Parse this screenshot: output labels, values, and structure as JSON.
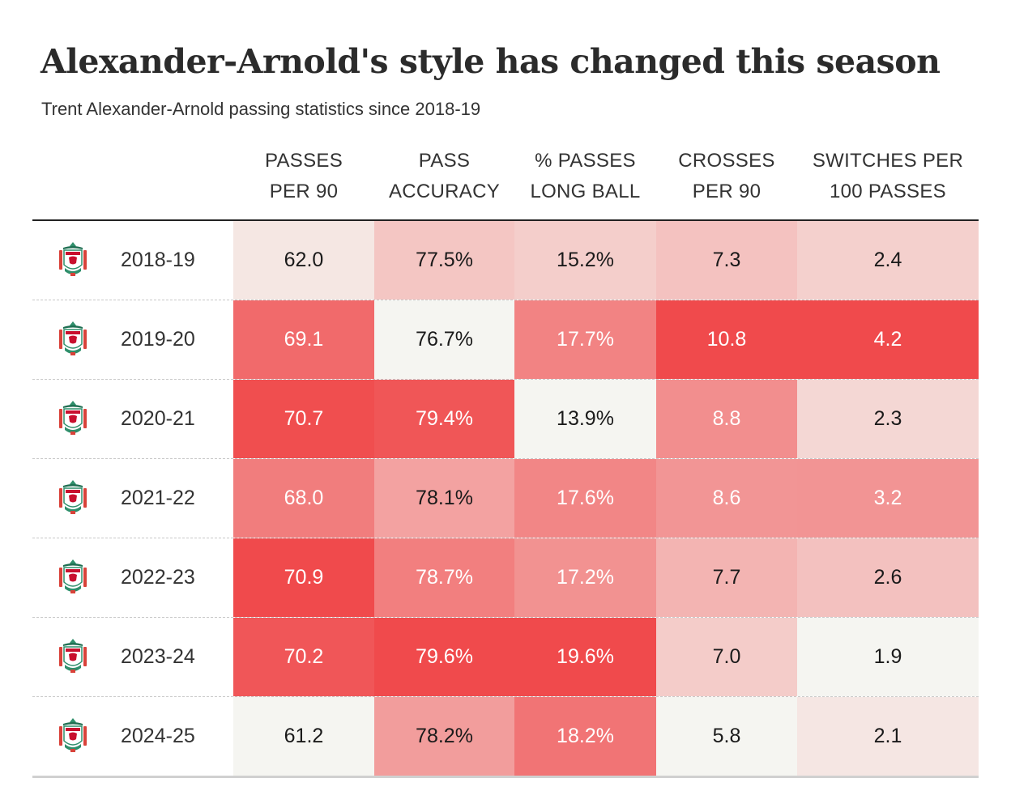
{
  "title": "Alexander-Arnold's style has changed this season",
  "subtitle": "Trent Alexander-Arnold passing statistics since 2018-19",
  "columns": [
    {
      "line1": "PASSES",
      "line2": "PER 90"
    },
    {
      "line1": "PASS",
      "line2": "ACCURACY"
    },
    {
      "line1": "% PASSES",
      "line2": "LONG BALL"
    },
    {
      "line1": "CROSSES",
      "line2": "PER 90"
    },
    {
      "line1": "SWITCHES PER",
      "line2": "100 PASSES"
    }
  ],
  "colors": {
    "low": "#f5f5f1",
    "high": "#f04a4c",
    "text_dark": "#1a1a1a",
    "text_light": "#ffffff"
  },
  "crest_icon": "liverpool-crest-icon",
  "chart_data": {
    "type": "table",
    "title": "Alexander-Arnold's style has changed this season",
    "subtitle": "Trent Alexander-Arnold passing statistics since 2018-19",
    "columns": [
      "PASSES PER 90",
      "PASS ACCURACY",
      "% PASSES LONG BALL",
      "CROSSES PER 90",
      "SWITCHES PER 100 PASSES"
    ],
    "rows": [
      {
        "season": "2018-19",
        "display": [
          "62.0",
          "77.5%",
          "15.2%",
          "7.3",
          "2.4"
        ],
        "values": [
          62.0,
          77.5,
          15.2,
          7.3,
          2.4
        ]
      },
      {
        "season": "2019-20",
        "display": [
          "69.1",
          "76.7%",
          "17.7%",
          "10.8",
          "4.2"
        ],
        "values": [
          69.1,
          76.7,
          17.7,
          10.8,
          4.2
        ]
      },
      {
        "season": "2020-21",
        "display": [
          "70.7",
          "79.4%",
          "13.9%",
          "8.8",
          "2.3"
        ],
        "values": [
          70.7,
          79.4,
          13.9,
          8.8,
          2.3
        ]
      },
      {
        "season": "2021-22",
        "display": [
          "68.0",
          "78.1%",
          "17.6%",
          "8.6",
          "3.2"
        ],
        "values": [
          68.0,
          78.1,
          17.6,
          8.6,
          3.2
        ]
      },
      {
        "season": "2022-23",
        "display": [
          "70.9",
          "78.7%",
          "17.2%",
          "7.7",
          "2.6"
        ],
        "values": [
          70.9,
          78.7,
          17.2,
          7.7,
          2.6
        ]
      },
      {
        "season": "2023-24",
        "display": [
          "70.2",
          "79.6%",
          "19.6%",
          "7.0",
          "1.9"
        ],
        "values": [
          70.2,
          79.6,
          19.6,
          7.0,
          1.9
        ]
      },
      {
        "season": "2024-25",
        "display": [
          "61.2",
          "78.2%",
          "18.2%",
          "5.8",
          "2.1"
        ],
        "values": [
          61.2,
          78.2,
          18.2,
          5.8,
          2.1
        ]
      }
    ]
  }
}
